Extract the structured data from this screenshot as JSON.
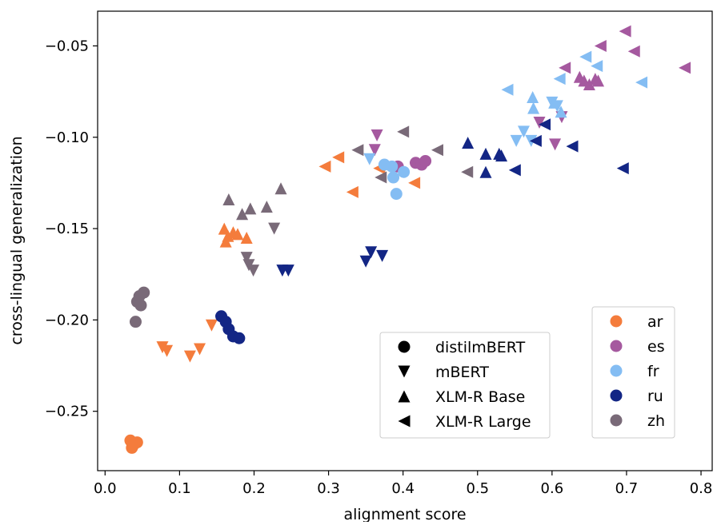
{
  "chart_data": {
    "type": "scatter",
    "xlabel": "alignment score",
    "ylabel": "cross-lingual generalization",
    "xlim": [
      -0.01,
      0.815
    ],
    "ylim": [
      -0.2825,
      -0.031
    ],
    "xticks": [
      0.0,
      0.1,
      0.2,
      0.3,
      0.4,
      0.5,
      0.6,
      0.7,
      0.8
    ],
    "xtick_labels": [
      "0.0",
      "0.1",
      "0.2",
      "0.3",
      "0.4",
      "0.5",
      "0.6",
      "0.7",
      "0.8"
    ],
    "yticks": [
      -0.05,
      -0.1,
      -0.15,
      -0.2,
      -0.25
    ],
    "ytick_labels": [
      "−0.05",
      "−0.10",
      "−0.15",
      "−0.20",
      "−0.25"
    ],
    "grid": false,
    "language_legend": {
      "placement": "lower-right",
      "entries": [
        {
          "name": "ar",
          "color": "#f47c3c"
        },
        {
          "name": "es",
          "color": "#a5599f"
        },
        {
          "name": "fr",
          "color": "#84bdf3"
        },
        {
          "name": "ru",
          "color": "#132685"
        },
        {
          "name": "zh",
          "color": "#796a78"
        }
      ]
    },
    "model_legend": {
      "placement": "lower-center",
      "entries": [
        {
          "name": "distilmBERT",
          "marker": "circle"
        },
        {
          "name": "mBERT",
          "marker": "triangle-down"
        },
        {
          "name": "XLM-R Base",
          "marker": "triangle-up"
        },
        {
          "name": "XLM-R Large",
          "marker": "triangle-left"
        }
      ]
    },
    "series": [
      {
        "name": "ar",
        "model": "distilmBERT",
        "points": [
          [
            0.034,
            -0.266
          ],
          [
            0.036,
            -0.27
          ],
          [
            0.039,
            -0.268
          ],
          [
            0.043,
            -0.267
          ],
          [
            0.037,
            -0.269
          ]
        ]
      },
      {
        "name": "ar",
        "model": "mBERT",
        "points": [
          [
            0.077,
            -0.215
          ],
          [
            0.083,
            -0.217
          ],
          [
            0.114,
            -0.22
          ],
          [
            0.127,
            -0.216
          ],
          [
            0.143,
            -0.203
          ]
        ]
      },
      {
        "name": "ar",
        "model": "XLM-R Base",
        "points": [
          [
            0.16,
            -0.15
          ],
          [
            0.162,
            -0.157
          ],
          [
            0.165,
            -0.154
          ],
          [
            0.172,
            -0.152
          ],
          [
            0.178,
            -0.153
          ],
          [
            0.19,
            -0.155
          ]
        ]
      },
      {
        "name": "ar",
        "model": "XLM-R Large",
        "points": [
          [
            0.295,
            -0.116
          ],
          [
            0.313,
            -0.111
          ],
          [
            0.332,
            -0.13
          ],
          [
            0.368,
            -0.117
          ],
          [
            0.415,
            -0.125
          ]
        ]
      },
      {
        "name": "es",
        "model": "distilmBERT",
        "points": [
          [
            0.417,
            -0.114
          ],
          [
            0.425,
            -0.115
          ],
          [
            0.43,
            -0.113
          ],
          [
            0.393,
            -0.116
          ]
        ]
      },
      {
        "name": "es",
        "model": "mBERT",
        "points": [
          [
            0.362,
            -0.107
          ],
          [
            0.365,
            -0.099
          ],
          [
            0.583,
            -0.092
          ],
          [
            0.604,
            -0.104
          ],
          [
            0.613,
            -0.089
          ]
        ]
      },
      {
        "name": "es",
        "model": "XLM-R Base",
        "points": [
          [
            0.637,
            -0.067
          ],
          [
            0.643,
            -0.069
          ],
          [
            0.65,
            -0.071
          ],
          [
            0.658,
            -0.068
          ],
          [
            0.662,
            -0.069
          ]
        ]
      },
      {
        "name": "es",
        "model": "XLM-R Large",
        "points": [
          [
            0.617,
            -0.062
          ],
          [
            0.665,
            -0.05
          ],
          [
            0.698,
            -0.042
          ],
          [
            0.71,
            -0.053
          ],
          [
            0.778,
            -0.062
          ]
        ]
      },
      {
        "name": "fr",
        "model": "distilmBERT",
        "points": [
          [
            0.375,
            -0.115
          ],
          [
            0.385,
            -0.116
          ],
          [
            0.387,
            -0.122
          ],
          [
            0.391,
            -0.131
          ],
          [
            0.401,
            -0.119
          ]
        ]
      },
      {
        "name": "fr",
        "model": "mBERT",
        "points": [
          [
            0.355,
            -0.112
          ],
          [
            0.552,
            -0.102
          ],
          [
            0.562,
            -0.097
          ],
          [
            0.572,
            -0.102
          ],
          [
            0.6,
            -0.081
          ],
          [
            0.607,
            -0.083
          ]
        ]
      },
      {
        "name": "fr",
        "model": "XLM-R Base",
        "points": [
          [
            0.574,
            -0.078
          ],
          [
            0.575,
            -0.084
          ],
          [
            0.603,
            -0.081
          ],
          [
            0.612,
            -0.086
          ]
        ]
      },
      {
        "name": "fr",
        "model": "XLM-R Large",
        "points": [
          [
            0.54,
            -0.074
          ],
          [
            0.61,
            -0.068
          ],
          [
            0.645,
            -0.056
          ],
          [
            0.66,
            -0.061
          ],
          [
            0.72,
            -0.07
          ]
        ]
      },
      {
        "name": "ru",
        "model": "distilmBERT",
        "points": [
          [
            0.156,
            -0.198
          ],
          [
            0.162,
            -0.201
          ],
          [
            0.166,
            -0.205
          ],
          [
            0.172,
            -0.209
          ],
          [
            0.18,
            -0.21
          ]
        ]
      },
      {
        "name": "ru",
        "model": "mBERT",
        "points": [
          [
            0.238,
            -0.173
          ],
          [
            0.246,
            -0.173
          ],
          [
            0.35,
            -0.168
          ],
          [
            0.357,
            -0.163
          ],
          [
            0.372,
            -0.165
          ]
        ]
      },
      {
        "name": "ru",
        "model": "XLM-R Base",
        "points": [
          [
            0.487,
            -0.103
          ],
          [
            0.511,
            -0.109
          ],
          [
            0.511,
            -0.119
          ],
          [
            0.529,
            -0.109
          ],
          [
            0.532,
            -0.11
          ]
        ]
      },
      {
        "name": "ru",
        "model": "XLM-R Large",
        "points": [
          [
            0.55,
            -0.118
          ],
          [
            0.578,
            -0.102
          ],
          [
            0.59,
            -0.093
          ],
          [
            0.627,
            -0.105
          ],
          [
            0.695,
            -0.117
          ]
        ]
      },
      {
        "name": "zh",
        "model": "distilmBERT",
        "points": [
          [
            0.041,
            -0.201
          ],
          [
            0.043,
            -0.19
          ],
          [
            0.046,
            -0.187
          ],
          [
            0.048,
            -0.192
          ],
          [
            0.052,
            -0.185
          ]
        ]
      },
      {
        "name": "zh",
        "model": "mBERT",
        "points": [
          [
            0.19,
            -0.166
          ],
          [
            0.193,
            -0.17
          ],
          [
            0.199,
            -0.173
          ],
          [
            0.227,
            -0.15
          ]
        ]
      },
      {
        "name": "zh",
        "model": "XLM-R Base",
        "points": [
          [
            0.166,
            -0.134
          ],
          [
            0.184,
            -0.142
          ],
          [
            0.195,
            -0.139
          ],
          [
            0.217,
            -0.138
          ],
          [
            0.236,
            -0.128
          ]
        ]
      },
      {
        "name": "zh",
        "model": "XLM-R Large",
        "points": [
          [
            0.339,
            -0.107
          ],
          [
            0.37,
            -0.122
          ],
          [
            0.4,
            -0.097
          ],
          [
            0.446,
            -0.107
          ],
          [
            0.486,
            -0.119
          ]
        ]
      }
    ]
  }
}
